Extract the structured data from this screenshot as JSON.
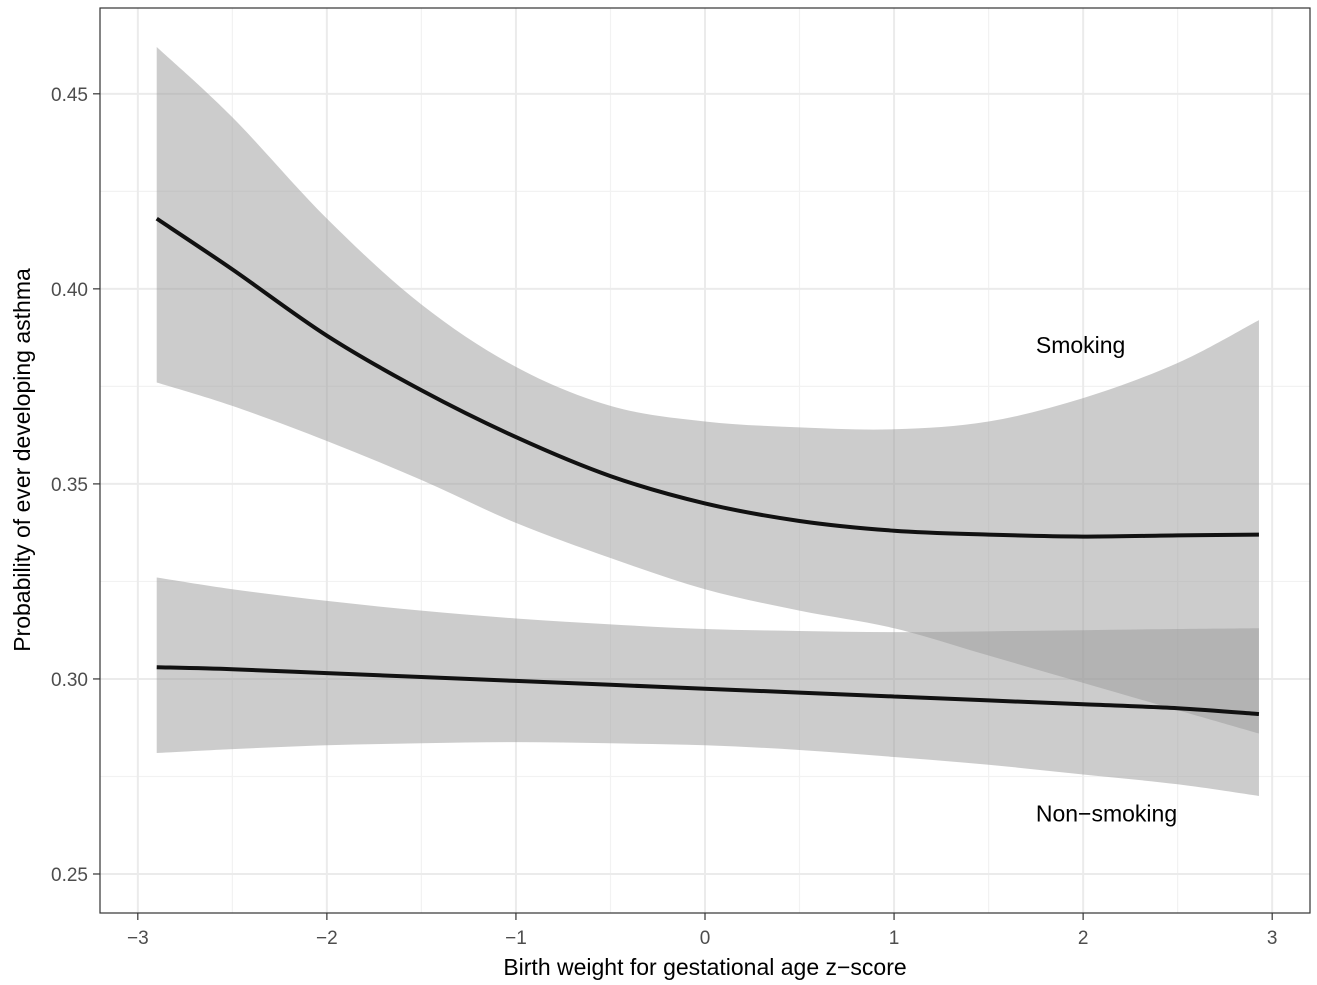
{
  "chart_data": {
    "type": "line",
    "title": "",
    "xlabel": "Birth weight for gestational age z−score",
    "ylabel": "Probability of ever developing asthma",
    "xlim": [
      -3.2,
      3.2
    ],
    "ylim": [
      0.24,
      0.472
    ],
    "x_ticks": [
      -3,
      -2,
      -1,
      0,
      1,
      2,
      3
    ],
    "x_tick_labels": [
      "−3",
      "−2",
      "−1",
      "0",
      "1",
      "2",
      "3"
    ],
    "y_ticks": [
      0.25,
      0.3,
      0.35,
      0.4,
      0.45
    ],
    "y_tick_labels": [
      "0.25",
      "0.30",
      "0.35",
      "0.40",
      "0.45"
    ],
    "grid": true,
    "legend": "none",
    "line_color": "#111111",
    "band_color": "#999999",
    "x": [
      -2.9,
      -2.5,
      -2.0,
      -1.5,
      -1.0,
      -0.5,
      0.0,
      0.5,
      1.0,
      1.5,
      2.0,
      2.5,
      2.93
    ],
    "series": [
      {
        "name": "Smoking",
        "values": [
          0.418,
          0.405,
          0.388,
          0.374,
          0.362,
          0.352,
          0.345,
          0.3405,
          0.338,
          0.337,
          0.3365,
          0.3368,
          0.337
        ],
        "lower": [
          0.376,
          0.37,
          0.361,
          0.351,
          0.34,
          0.331,
          0.323,
          0.3175,
          0.313,
          0.306,
          0.299,
          0.292,
          0.286
        ],
        "upper": [
          0.462,
          0.444,
          0.418,
          0.396,
          0.38,
          0.37,
          0.366,
          0.3645,
          0.364,
          0.366,
          0.372,
          0.381,
          0.392
        ]
      },
      {
        "name": "Non−smoking",
        "values": [
          0.303,
          0.3025,
          0.3015,
          0.3005,
          0.2995,
          0.2985,
          0.2975,
          0.2965,
          0.2955,
          0.2945,
          0.2935,
          0.2925,
          0.291
        ],
        "lower": [
          0.281,
          0.282,
          0.283,
          0.2835,
          0.2838,
          0.2835,
          0.283,
          0.2818,
          0.28,
          0.278,
          0.2755,
          0.273,
          0.27
        ],
        "upper": [
          0.326,
          0.323,
          0.32,
          0.3175,
          0.3155,
          0.314,
          0.3128,
          0.3123,
          0.312,
          0.3122,
          0.3125,
          0.3128,
          0.313
        ]
      }
    ],
    "annotations": [
      {
        "text": "Smoking",
        "x": 1.75,
        "y": 0.3835
      },
      {
        "text": "Non−smoking",
        "x": 1.75,
        "y": 0.2635
      }
    ]
  }
}
